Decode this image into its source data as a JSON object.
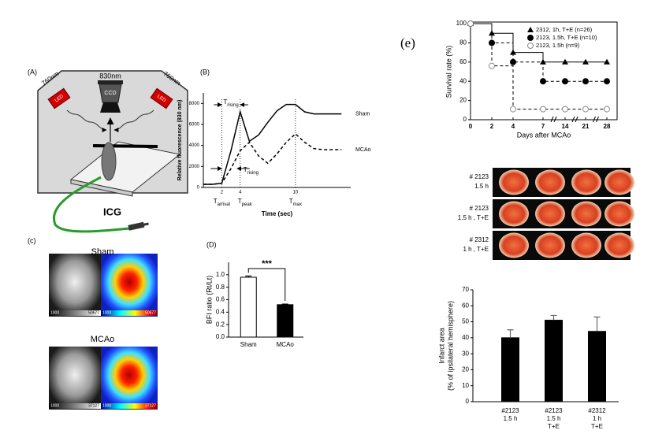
{
  "schematic": {
    "panel": "(A)",
    "wavelengths": [
      "760nm",
      "830nm",
      "760nm"
    ],
    "led": [
      "LED",
      "LED"
    ],
    "camera": "CCD",
    "dye": "ICG"
  },
  "imaging": {
    "panel": "(c)",
    "rows": [
      {
        "title": "Sham",
        "scale": [
          "1000",
          "50677",
          "1000",
          "50677"
        ]
      },
      {
        "title": "MCAo",
        "scale": [
          "1000",
          "37127",
          "1000",
          "37127"
        ]
      }
    ]
  },
  "slices": {
    "rows": [
      [
        "# 2123",
        "1.5 h"
      ],
      [
        "# 2123",
        "1.5 h , T+E"
      ],
      [
        "# 2312",
        "1 h , T+E"
      ]
    ]
  },
  "chart_data": [
    {
      "type": "line",
      "panel": "(B)",
      "ylabel": "Relative fluorescence (830 nm)",
      "xlabel": "Time (sec)",
      "x": [
        0,
        1,
        2,
        3,
        4,
        5,
        6,
        7,
        8,
        9,
        10,
        11,
        12,
        13,
        14,
        15
      ],
      "series": [
        {
          "name": "Sham",
          "color": "#000000",
          "style": "solid",
          "values": [
            300,
            300,
            400,
            3500,
            7200,
            4400,
            5000,
            6200,
            7300,
            7900,
            7900,
            7200,
            7000,
            7000,
            7000,
            7000
          ]
        },
        {
          "name": "MCAo",
          "color": "#000000",
          "style": "dashed",
          "values": [
            300,
            300,
            400,
            1800,
            3500,
            4300,
            3000,
            2300,
            3200,
            4300,
            5100,
            4300,
            3700,
            3600,
            3600,
            3600
          ]
        }
      ],
      "xlim": [
        0,
        16
      ],
      "ylim": [
        0,
        9000
      ],
      "xticks": [
        2,
        4,
        10
      ],
      "yticks": [
        0,
        2000,
        4000,
        6000,
        8000
      ],
      "annotations": [
        {
          "text": "T",
          "sub": "rising"
        },
        {
          "text": "T",
          "sub": "rising"
        },
        {
          "text": "T",
          "sub": "arrival"
        },
        {
          "text": "T",
          "sub": "peak"
        },
        {
          "text": "T",
          "sub": "max"
        }
      ]
    },
    {
      "type": "bar",
      "panel": "(D)",
      "ylabel": "BFI ratio (Rt/Lt)",
      "categories": [
        "Sham",
        "MCAo"
      ],
      "values": [
        0.96,
        0.52
      ],
      "errors": [
        0.02,
        0.01
      ],
      "colors": [
        "#ffffff",
        "#000000"
      ],
      "ylim": [
        0,
        1.2
      ],
      "yticks": [
        {
          "value": 0,
          "label": "0.0"
        },
        {
          "value": 0.2,
          "label": "0.2"
        },
        {
          "value": 0.4,
          "label": "0.4"
        },
        {
          "value": 0.6,
          "label": "0.6"
        },
        {
          "value": 0.8,
          "label": "0.8"
        },
        {
          "value": 1,
          "label": "1.0"
        }
      ],
      "annotation": "***"
    },
    {
      "type": "line",
      "panel": "(e)",
      "step": true,
      "ylabel": "Survival rate (%)",
      "xlabel": "Days after MCAo",
      "categories": [
        "0",
        "2",
        "4",
        "7",
        "14",
        "21",
        "28"
      ],
      "series": [
        {
          "name": "2312, 1h, T+E (n=26)",
          "color": "#000000",
          "marker": "triangle",
          "style": "solid",
          "values": [
            100,
            90,
            70,
            60,
            60,
            60,
            60
          ]
        },
        {
          "name": "2123, 1.5h, T+E (n=10)",
          "color": "#000000",
          "marker": "circle",
          "style": "dashed",
          "values": [
            100,
            80,
            60,
            40,
            40,
            40,
            40
          ]
        },
        {
          "name": "2123, 1.5h (n=9)",
          "color": "#888888",
          "marker": "circle-open",
          "style": "dashed",
          "values": [
            100,
            56,
            11,
            11,
            11,
            11,
            11
          ]
        }
      ],
      "ylim": [
        0,
        100
      ],
      "yticks": [
        0,
        20,
        40,
        60,
        80,
        100
      ],
      "legend": "upper right"
    },
    {
      "type": "bar",
      "ylabel": [
        "Infarct area",
        "(% of ipsilateral hemisphere)"
      ],
      "categories": [
        [
          "#2123",
          "1.5 h"
        ],
        [
          "#2123",
          "1.5 h",
          "T+E"
        ],
        [
          "#2312",
          "1 h",
          "T+E"
        ]
      ],
      "values": [
        40,
        51,
        44
      ],
      "errors": [
        5,
        3,
        9
      ],
      "color": "#000000",
      "ylim": [
        0,
        70
      ],
      "yticks": [
        0,
        10,
        20,
        30,
        40,
        50,
        60,
        70
      ]
    }
  ]
}
